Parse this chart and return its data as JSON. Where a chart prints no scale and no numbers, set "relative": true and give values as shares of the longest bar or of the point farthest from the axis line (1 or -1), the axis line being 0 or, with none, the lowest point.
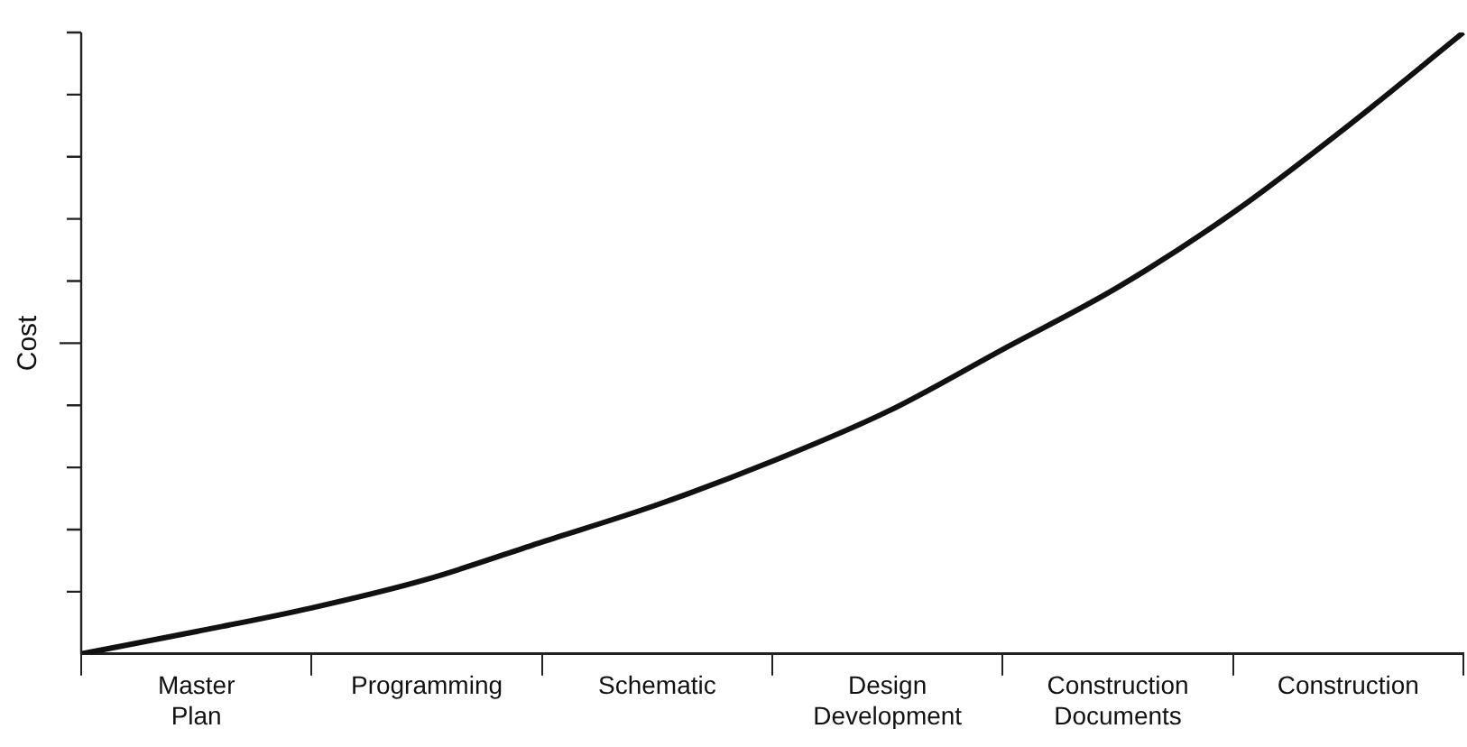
{
  "chart_data": {
    "type": "line",
    "ylabel": "Cost",
    "relative": true,
    "categories": [
      null,
      "Master Plan",
      null,
      "Programming",
      null,
      "Schematic",
      null,
      "Design Development",
      null,
      "Construction Documents",
      null,
      "Construction",
      null
    ],
    "series": [
      {
        "color": "#111111",
        "values": [
          0,
          0.036,
          0.074,
          0.12,
          0.18,
          0.24,
          0.31,
          0.39,
          0.49,
          0.59,
          0.71,
          0.85,
          1
        ]
      }
    ],
    "marker": "none",
    "legend": false,
    "grid": false
  }
}
